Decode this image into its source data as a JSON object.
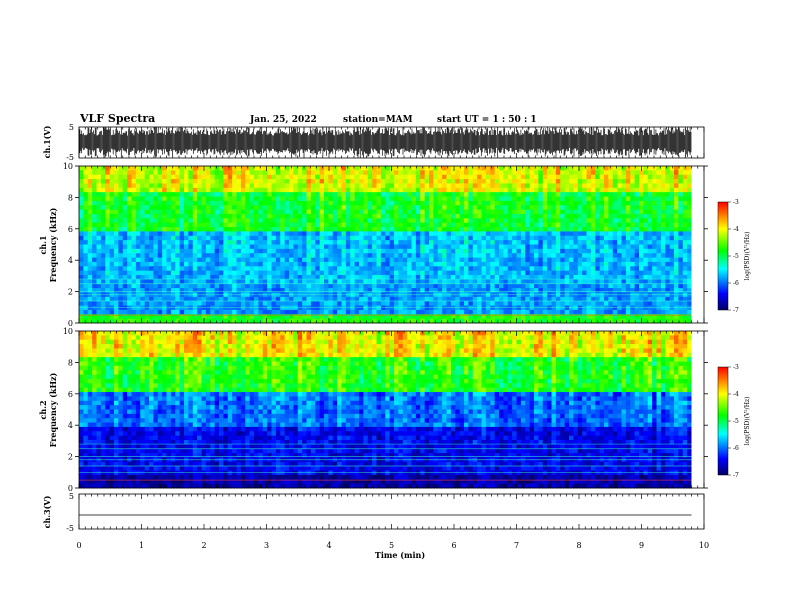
{
  "header": {
    "title": "VLF Spectra",
    "date": "Jan. 25, 2022",
    "station": "station=MAM",
    "start": "start  UT =   1 : 50 : 1"
  },
  "chart_data": [
    {
      "type": "line",
      "panel": "waveform-ch1",
      "ylabel": "ch.1(V)",
      "ylim": [
        -5,
        5
      ],
      "yticks": [
        "5",
        "-5"
      ],
      "note": "dense high-amplitude waveform filling most of the range"
    },
    {
      "type": "heatmap",
      "panel": "spectrogram-ch1",
      "ylabel": "ch.1\nFrequency (kHz)",
      "ylim": [
        0,
        10
      ],
      "yticks": [
        "10",
        "8",
        "6",
        "4",
        "2",
        "0"
      ],
      "xlim": [
        0,
        9.8
      ],
      "colorbar": {
        "label": "log(PSD)(V²/Hz)",
        "range": [
          -7,
          -3
        ],
        "ticks": [
          "-3",
          "-4",
          "-5",
          "-6",
          "-7"
        ]
      }
    },
    {
      "type": "heatmap",
      "panel": "spectrogram-ch2",
      "ylabel": "ch.2\nFrequency (kHz)",
      "ylim": [
        0,
        10
      ],
      "yticks": [
        "10",
        "8",
        "6",
        "4",
        "2",
        "0"
      ],
      "xlim": [
        0,
        9.8
      ],
      "colorbar": {
        "label": "log(PSD)(V²/Hz)",
        "range": [
          -7,
          -3
        ],
        "ticks": [
          "-3",
          "-4",
          "-5",
          "-6",
          "-7"
        ]
      }
    },
    {
      "type": "line",
      "panel": "waveform-ch3",
      "ylabel": "ch.3(V)",
      "ylim": [
        -5,
        5
      ],
      "yticks": [
        "5",
        "-5"
      ],
      "x": [
        0,
        9.8
      ],
      "y": [
        -1,
        -1
      ]
    }
  ],
  "xaxis": {
    "label": "Time (min)",
    "ticks": [
      "0",
      "1",
      "2",
      "3",
      "4",
      "5",
      "6",
      "7",
      "8",
      "9",
      "10"
    ],
    "range": [
      0,
      10
    ]
  },
  "colors": {
    "low": "#000066",
    "mid_low": "#0000ff",
    "mid": "#00ffff",
    "mid_high": "#00ff00",
    "high": "#ffff00",
    "top": "#ff0000"
  }
}
